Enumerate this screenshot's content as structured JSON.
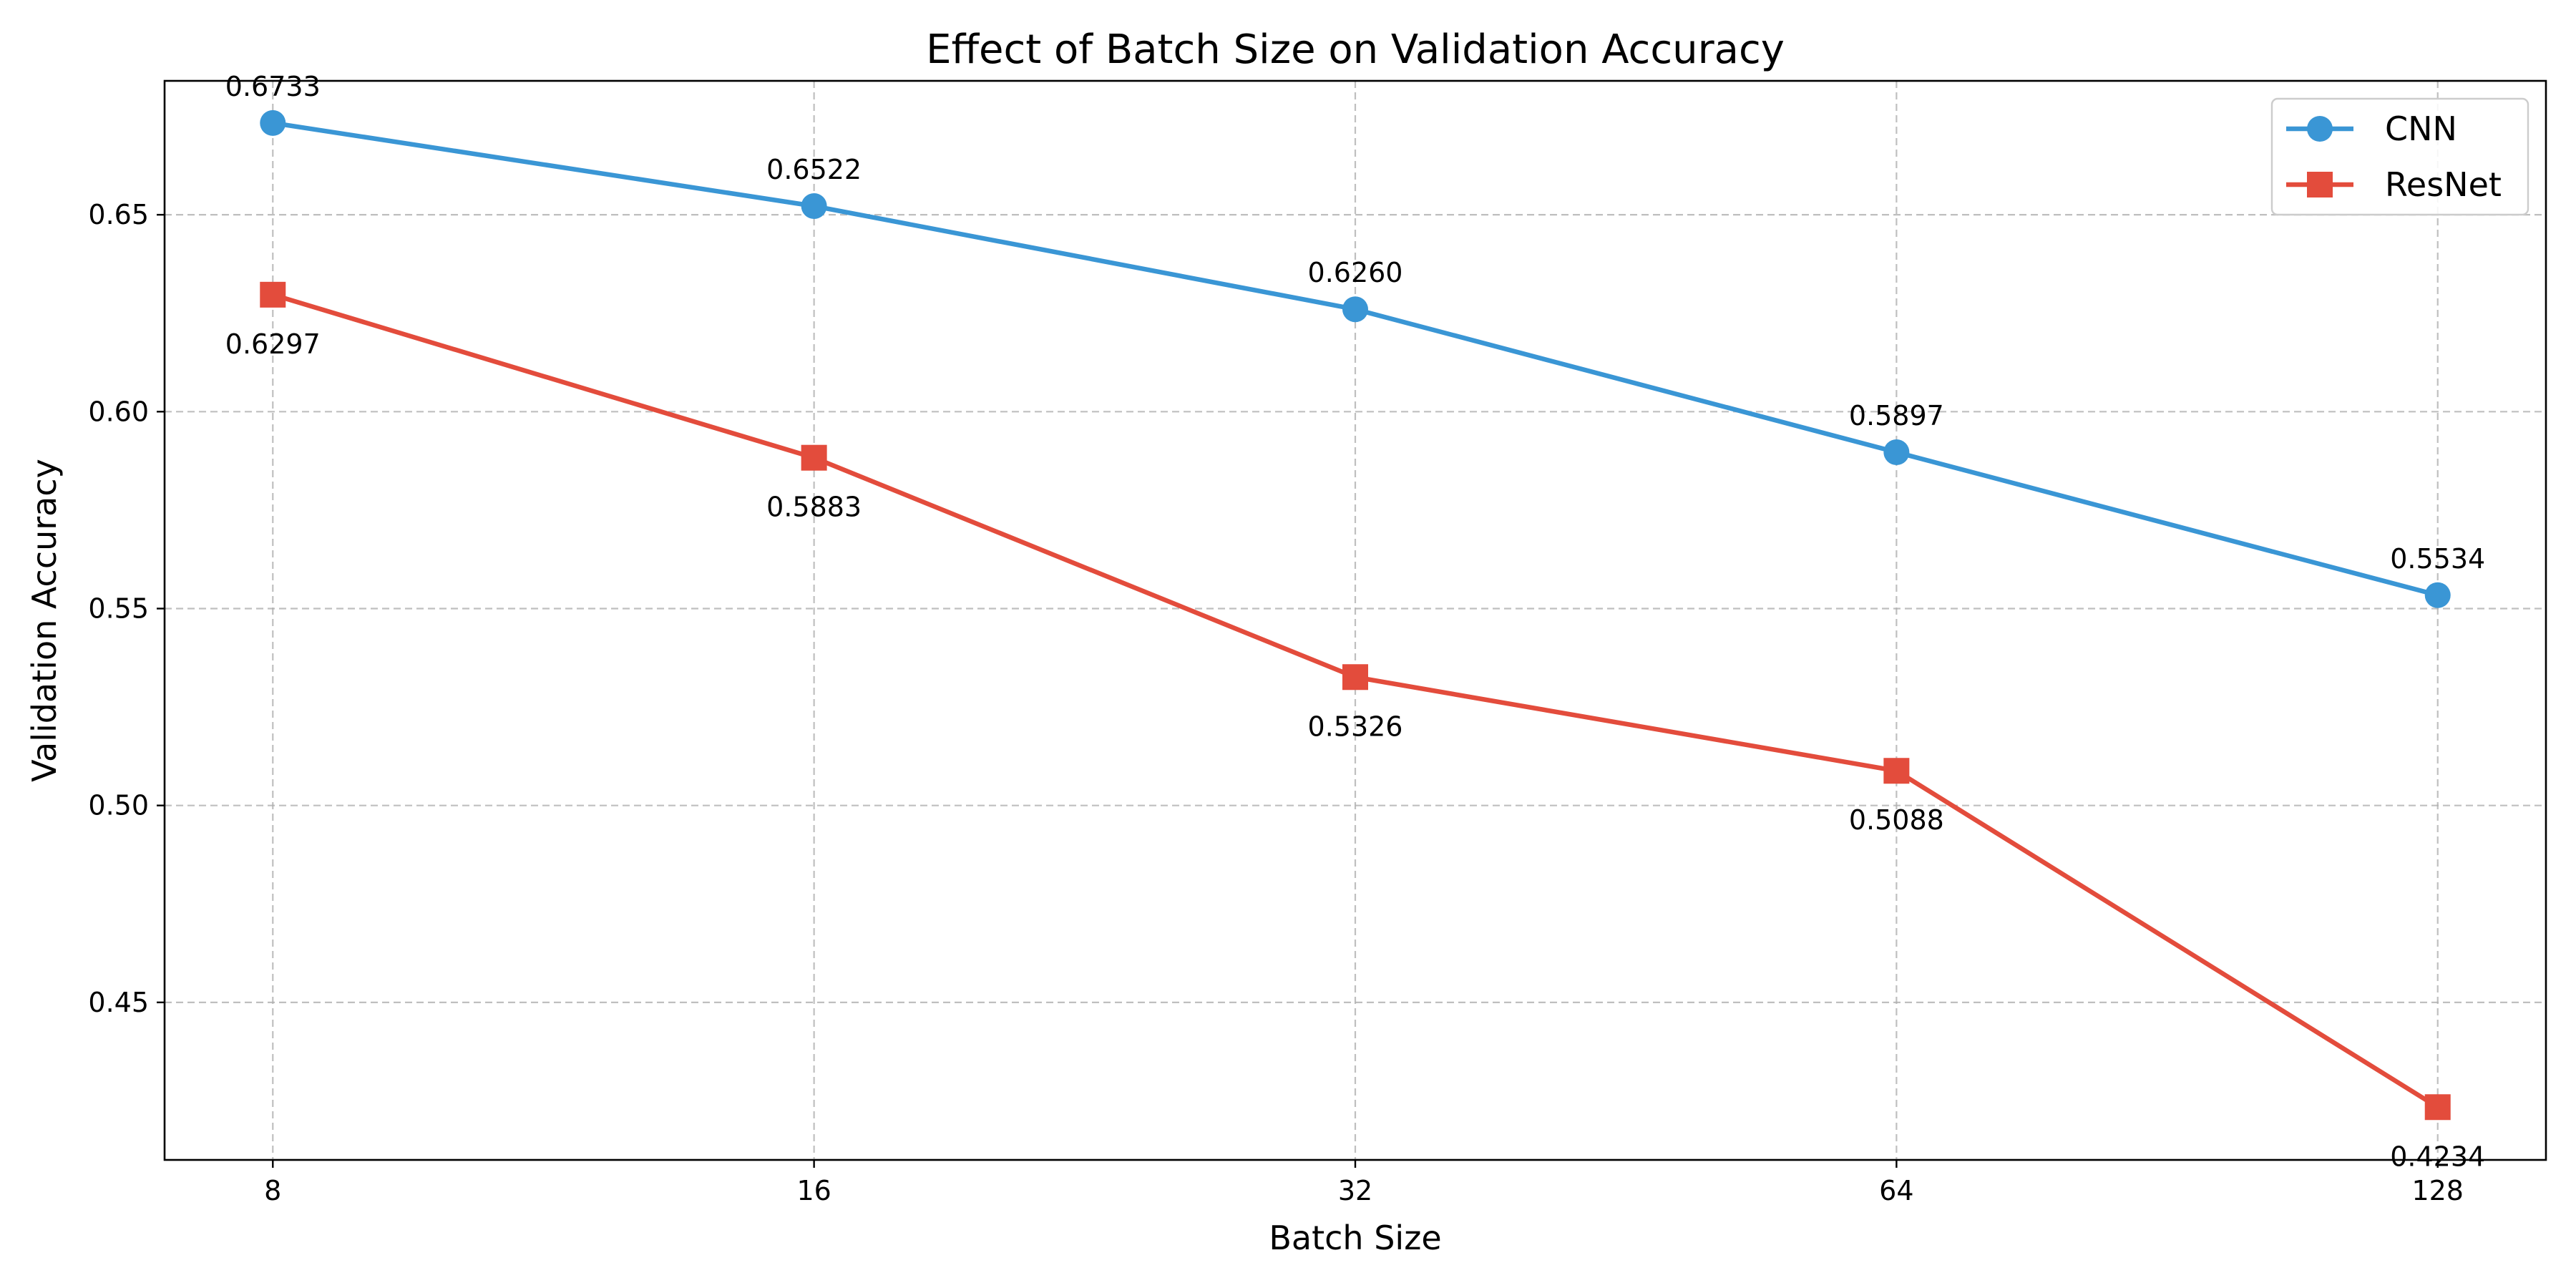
{
  "chart_data": {
    "type": "line",
    "title": "Effect of Batch Size on Validation Accuracy",
    "xlabel": "Batch Size",
    "ylabel": "Validation Accuracy",
    "categories": [
      "8",
      "16",
      "32",
      "64",
      "128"
    ],
    "x_scale": "log2",
    "ylim": [
      0.41,
      0.684
    ],
    "yticks": [
      0.45,
      0.5,
      0.55,
      0.6,
      0.65
    ],
    "ytick_labels": [
      "0.45",
      "0.50",
      "0.55",
      "0.60",
      "0.65"
    ],
    "grid": true,
    "legend_position": "top-right",
    "series": [
      {
        "name": "CNN",
        "color": "#3a96d5",
        "marker": "circle",
        "label_position": "above",
        "values": [
          0.6733,
          0.6522,
          0.626,
          0.5897,
          0.5534
        ],
        "labels": [
          "0.6733",
          "0.6522",
          "0.6260",
          "0.5897",
          "0.5534"
        ]
      },
      {
        "name": "ResNet",
        "color": "#e34c3c",
        "marker": "square",
        "label_position": "below",
        "values": [
          0.6297,
          0.5883,
          0.5326,
          0.5088,
          0.4234
        ],
        "labels": [
          "0.6297",
          "0.5883",
          "0.5326",
          "0.5088",
          "0.4234"
        ]
      }
    ]
  }
}
